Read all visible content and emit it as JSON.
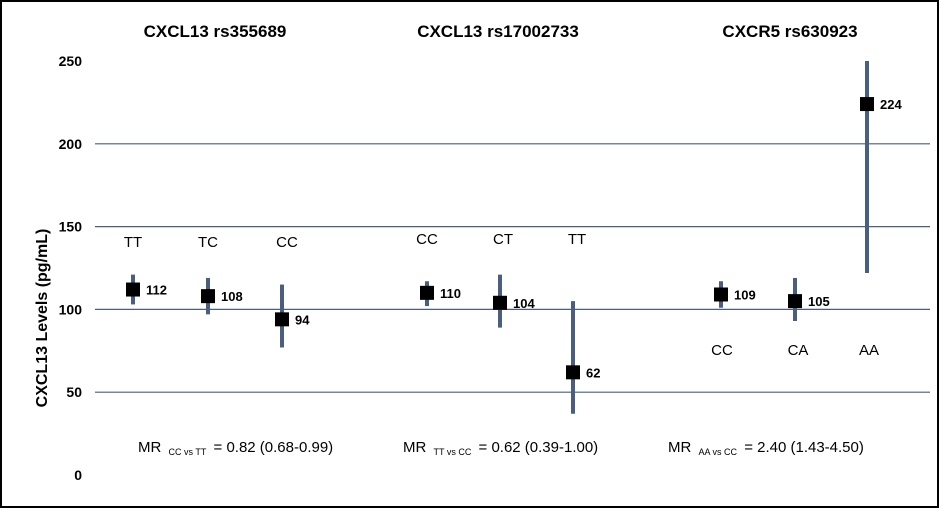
{
  "chart_data": {
    "type": "scatter",
    "ylabel": "CXCL13 Levels (pg/mL)",
    "ylim": [
      0,
      250
    ],
    "yticks": [
      0,
      50,
      100,
      150,
      200,
      250
    ],
    "grid": true,
    "colors": {
      "marker": "#000000",
      "error_bar": "#4a5f80",
      "grid": "#4a5f80",
      "frame": "#000000"
    },
    "groups": [
      {
        "title": "CXCL13 rs355689",
        "points": [
          {
            "genotype": "TT",
            "value": 112,
            "label": "112",
            "ci": [
              103,
              121
            ]
          },
          {
            "genotype": "TC",
            "value": 108,
            "label": "108",
            "ci": [
              97,
              119
            ]
          },
          {
            "genotype": "CC",
            "value": 94,
            "label": "94",
            "ci": [
              77,
              115
            ]
          }
        ],
        "mr": {
          "prefix": "MR",
          "sub": "CC vs TT",
          "value": "= 0.82 (0.68-0.99)"
        }
      },
      {
        "title": "CXCL13 rs17002733",
        "points": [
          {
            "genotype": "CC",
            "value": 110,
            "label": "110",
            "ci": [
              102,
              117
            ]
          },
          {
            "genotype": "CT",
            "value": 104,
            "label": "104",
            "ci": [
              89,
              121
            ]
          },
          {
            "genotype": "TT",
            "value": 62,
            "label": "62",
            "ci": [
              37,
              105
            ]
          }
        ],
        "mr": {
          "prefix": "MR",
          "sub": "TT vs CC",
          "value": "= 0.62 (0.39-1.00)"
        }
      },
      {
        "title": "CXCR5 rs630923",
        "points": [
          {
            "genotype": "CC",
            "value": 109,
            "label": "109",
            "ci": [
              101,
              117
            ]
          },
          {
            "genotype": "CA",
            "value": 105,
            "label": "105",
            "ci": [
              93,
              119
            ]
          },
          {
            "genotype": "AA",
            "value": 224,
            "label": "224",
            "ci": [
              122,
              250
            ]
          }
        ],
        "mr": {
          "prefix": "MR",
          "sub": "AA vs CC",
          "value": "= 2.40 (1.43-4.50)"
        }
      }
    ]
  }
}
